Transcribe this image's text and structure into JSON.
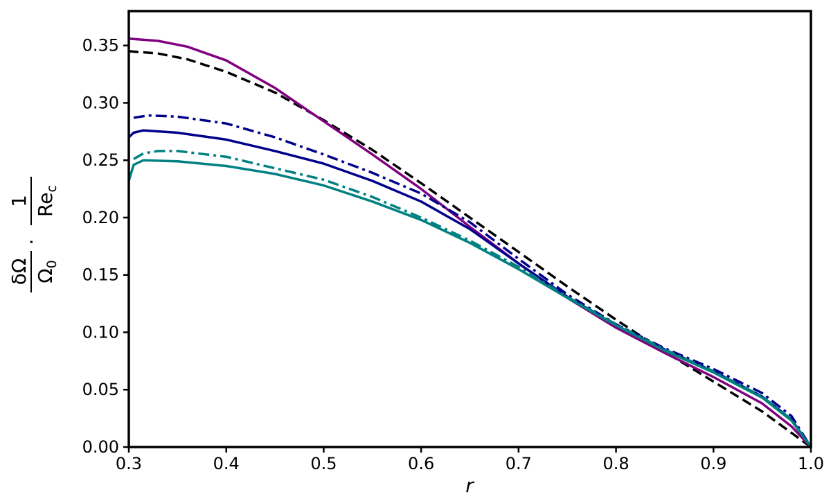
{
  "chart_data": {
    "type": "line",
    "title": "",
    "xlabel": "r",
    "ylabel": {
      "numerator": "δΩ",
      "denominator": "Ω",
      "denominator_sub": "0",
      "dot": "·",
      "frac_numerator": "1",
      "frac_denominator": "Re",
      "frac_denominator_sub": "c"
    },
    "xlim": [
      0.3,
      1.0
    ],
    "ylim": [
      0.0,
      0.38
    ],
    "xticks": [
      0.3,
      0.4,
      0.5,
      0.6,
      0.7,
      0.8,
      0.9,
      1.0
    ],
    "xtick_labels": [
      "0.3",
      "0.4",
      "0.5",
      "0.6",
      "0.7",
      "0.8",
      "0.9",
      "1.0"
    ],
    "yticks": [
      0.0,
      0.05,
      0.1,
      0.15,
      0.2,
      0.25,
      0.3,
      0.35
    ],
    "ytick_labels": [
      "0.00",
      "0.05",
      "0.10",
      "0.15",
      "0.20",
      "0.25",
      "0.30",
      "0.35"
    ],
    "grid": false,
    "legend": "none",
    "series": [
      {
        "color": "#000000",
        "style": "dashed",
        "points": [
          [
            0.3,
            0.345
          ],
          [
            0.33,
            0.343
          ],
          [
            0.36,
            0.338
          ],
          [
            0.4,
            0.327
          ],
          [
            0.45,
            0.309
          ],
          [
            0.5,
            0.285
          ],
          [
            0.55,
            0.259
          ],
          [
            0.6,
            0.23
          ],
          [
            0.65,
            0.2
          ],
          [
            0.7,
            0.17
          ],
          [
            0.75,
            0.14
          ],
          [
            0.8,
            0.111
          ],
          [
            0.85,
            0.083
          ],
          [
            0.9,
            0.057
          ],
          [
            0.95,
            0.031
          ],
          [
            1.0,
            0.0
          ]
        ]
      },
      {
        "color": "#800080",
        "style": "solid",
        "points": [
          [
            0.3,
            0.356
          ],
          [
            0.33,
            0.354
          ],
          [
            0.36,
            0.349
          ],
          [
            0.4,
            0.337
          ],
          [
            0.45,
            0.313
          ],
          [
            0.5,
            0.284
          ],
          [
            0.55,
            0.255
          ],
          [
            0.6,
            0.225
          ],
          [
            0.65,
            0.192
          ],
          [
            0.7,
            0.16
          ],
          [
            0.75,
            0.13
          ],
          [
            0.8,
            0.104
          ],
          [
            0.85,
            0.082
          ],
          [
            0.9,
            0.061
          ],
          [
            0.95,
            0.038
          ],
          [
            0.98,
            0.018
          ],
          [
            1.0,
            0.0
          ]
        ]
      },
      {
        "color": "#00008b",
        "style": "dashdot",
        "points": [
          [
            0.305,
            0.287
          ],
          [
            0.32,
            0.289
          ],
          [
            0.35,
            0.288
          ],
          [
            0.4,
            0.282
          ],
          [
            0.45,
            0.27
          ],
          [
            0.5,
            0.255
          ],
          [
            0.55,
            0.239
          ],
          [
            0.6,
            0.221
          ],
          [
            0.65,
            0.196
          ],
          [
            0.7,
            0.164
          ],
          [
            0.75,
            0.133
          ],
          [
            0.8,
            0.107
          ],
          [
            0.85,
            0.086
          ],
          [
            0.9,
            0.068
          ],
          [
            0.95,
            0.047
          ],
          [
            0.98,
            0.027
          ],
          [
            1.0,
            0.0
          ]
        ]
      },
      {
        "color": "#00008b",
        "style": "solid",
        "points": [
          [
            0.3,
            0.27
          ],
          [
            0.305,
            0.274
          ],
          [
            0.315,
            0.276
          ],
          [
            0.35,
            0.274
          ],
          [
            0.4,
            0.268
          ],
          [
            0.45,
            0.258
          ],
          [
            0.5,
            0.247
          ],
          [
            0.55,
            0.232
          ],
          [
            0.6,
            0.214
          ],
          [
            0.65,
            0.19
          ],
          [
            0.7,
            0.16
          ],
          [
            0.75,
            0.131
          ],
          [
            0.8,
            0.106
          ],
          [
            0.85,
            0.085
          ],
          [
            0.9,
            0.066
          ],
          [
            0.95,
            0.044
          ],
          [
            0.98,
            0.024
          ],
          [
            1.0,
            0.0
          ]
        ]
      },
      {
        "color": "#008080",
        "style": "dashdot",
        "points": [
          [
            0.305,
            0.251
          ],
          [
            0.315,
            0.256
          ],
          [
            0.33,
            0.258
          ],
          [
            0.35,
            0.258
          ],
          [
            0.4,
            0.253
          ],
          [
            0.45,
            0.243
          ],
          [
            0.5,
            0.233
          ],
          [
            0.55,
            0.218
          ],
          [
            0.6,
            0.2
          ],
          [
            0.65,
            0.18
          ],
          [
            0.7,
            0.157
          ],
          [
            0.75,
            0.131
          ],
          [
            0.8,
            0.107
          ],
          [
            0.85,
            0.085
          ],
          [
            0.9,
            0.066
          ],
          [
            0.95,
            0.044
          ],
          [
            0.98,
            0.024
          ],
          [
            1.0,
            0.0
          ]
        ]
      },
      {
        "color": "#008080",
        "style": "solid",
        "points": [
          [
            0.3,
            0.232
          ],
          [
            0.305,
            0.246
          ],
          [
            0.315,
            0.25
          ],
          [
            0.35,
            0.249
          ],
          [
            0.4,
            0.245
          ],
          [
            0.45,
            0.238
          ],
          [
            0.5,
            0.228
          ],
          [
            0.55,
            0.214
          ],
          [
            0.6,
            0.198
          ],
          [
            0.65,
            0.178
          ],
          [
            0.7,
            0.155
          ],
          [
            0.75,
            0.13
          ],
          [
            0.8,
            0.106
          ],
          [
            0.85,
            0.084
          ],
          [
            0.9,
            0.065
          ],
          [
            0.95,
            0.043
          ],
          [
            0.98,
            0.023
          ],
          [
            1.0,
            0.0
          ]
        ]
      }
    ]
  }
}
